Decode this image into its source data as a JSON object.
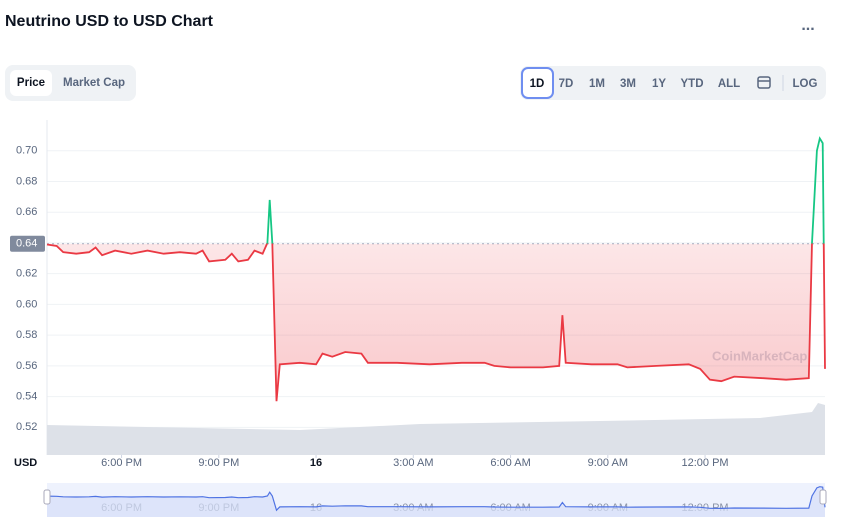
{
  "header": {
    "title": "Neutrino USD to USD Chart",
    "menu": "...",
    "tabs": [
      "Price",
      "Market Cap"
    ],
    "ranges": [
      "1D",
      "7D",
      "1M",
      "3M",
      "1Y",
      "YTD",
      "ALL"
    ],
    "log": "LOG",
    "watermark": "CoinMarketCap"
  },
  "chart_data": {
    "type": "line",
    "y_label": "USD",
    "x": [
      15.7,
      16.0,
      16.2,
      16.6,
      17.0,
      17.2,
      17.4,
      17.8,
      18.3,
      18.8,
      19.3,
      19.8,
      20.3,
      20.5,
      20.7,
      21.2,
      21.4,
      21.6,
      21.9,
      22.1,
      22.35,
      22.5,
      22.57,
      22.65,
      22.78,
      22.88,
      23.5,
      24.0,
      24.2,
      24.5,
      24.9,
      25.4,
      25.6,
      26.5,
      27.5,
      28.5,
      29.2,
      29.5,
      30.0,
      31.0,
      31.5,
      31.6,
      31.7,
      32.5,
      33.3,
      33.6,
      34.5,
      35.5,
      35.85,
      36.15,
      36.5,
      36.9,
      37.8,
      38.5,
      39.2,
      39.3,
      39.45,
      39.54,
      39.63,
      39.7
    ],
    "series": [
      {
        "name": "Price",
        "color": "#ea3943",
        "up_color": "#16c784",
        "values": [
          0.639,
          0.638,
          0.634,
          0.633,
          0.634,
          0.637,
          0.632,
          0.635,
          0.633,
          0.635,
          0.633,
          0.634,
          0.633,
          0.635,
          0.628,
          0.629,
          0.633,
          0.628,
          0.629,
          0.635,
          0.633,
          0.64,
          0.668,
          0.64,
          0.537,
          0.561,
          0.562,
          0.561,
          0.568,
          0.566,
          0.569,
          0.568,
          0.562,
          0.562,
          0.561,
          0.562,
          0.562,
          0.56,
          0.559,
          0.559,
          0.56,
          0.593,
          0.562,
          0.561,
          0.561,
          0.559,
          0.56,
          0.561,
          0.558,
          0.551,
          0.55,
          0.553,
          0.552,
          0.551,
          0.552,
          0.64,
          0.7,
          0.708,
          0.705,
          0.558
        ]
      }
    ],
    "reference": {
      "value": 0.6395,
      "label": "0.64"
    },
    "xlim": [
      15.7,
      39.7
    ],
    "xticks": [
      {
        "value": 18,
        "label": "6:00 PM"
      },
      {
        "value": 21,
        "label": "9:00 PM"
      },
      {
        "value": 24,
        "label": "16"
      },
      {
        "value": 27,
        "label": "3:00 AM"
      },
      {
        "value": 30,
        "label": "6:00 AM"
      },
      {
        "value": 33,
        "label": "9:00 AM"
      },
      {
        "value": 36,
        "label": "12:00 PM"
      }
    ],
    "ylim": [
      0.502,
      0.72
    ],
    "yticks": [
      0.52,
      0.54,
      0.56,
      0.58,
      {
        "value": 0.6,
        "label": "0.60"
      },
      0.62,
      0.64,
      0.66,
      0.68,
      {
        "value": 0.7,
        "label": "0.70"
      }
    ],
    "grid": true
  }
}
